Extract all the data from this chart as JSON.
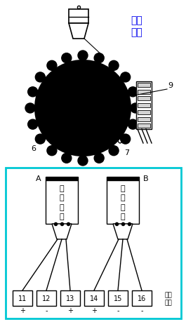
{
  "bg_color": "#ffffff",
  "cyan_box_color": "#00c8d4",
  "text_color_blue": "#0000ee",
  "text_color_black": "#000000",
  "title_label": "微动\n开关",
  "label_6": "6",
  "label_7": "7",
  "label_9": "9",
  "label_A": "A",
  "label_B": "B",
  "sensor_label": "接\n近\n开\n关",
  "terminal_label": "接线\n端子",
  "terminal_numbers": [
    "11",
    "12",
    "13",
    "14",
    "15",
    "16"
  ],
  "terminal_signs": [
    "+",
    "-",
    "+",
    "+",
    "-",
    "-"
  ],
  "figsize": [
    2.65,
    4.6
  ],
  "dpi": 100
}
